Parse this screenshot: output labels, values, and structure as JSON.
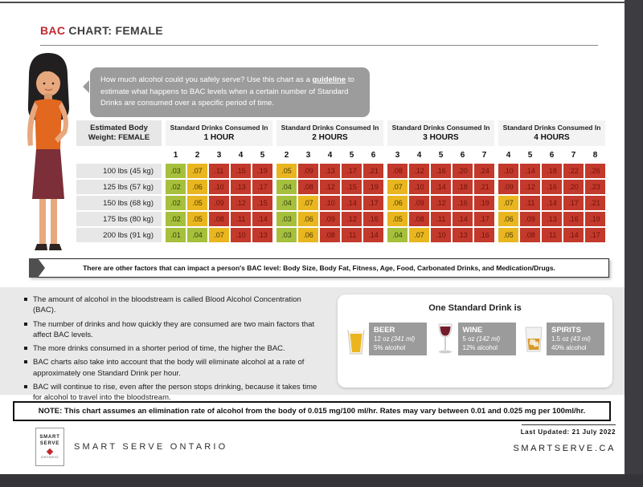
{
  "title": {
    "red": "BAC",
    "rest": " CHART: FEMALE"
  },
  "intro": {
    "pre": "How much alcohol could you safely serve? Use this chart as a ",
    "link": "guideline",
    "post": " to estimate what happens to BAC levels when a certain number of Standard Drinks are consumed over a specific period of time."
  },
  "chart_data": {
    "type": "table",
    "weight_header": [
      "Estimated Body",
      "Weight: FEMALE"
    ],
    "weights": [
      "100 lbs (45 kg)",
      "125 lbs (57 kg)",
      "150 lbs (68 kg)",
      "175 lbs (80 kg)",
      "200 lbs (91 kg)"
    ],
    "color_legend": {
      "green": "#a6c03c",
      "yellow": "#e9b61f",
      "red": "#c3392b"
    },
    "color_rule": {
      "green_max": 0.04,
      "yellow_max": 0.07
    },
    "groups": [
      {
        "header": "Standard Drinks Consumed In",
        "period": "1 HOUR",
        "drink_counts": [
          "1",
          "2",
          "3",
          "4",
          "5"
        ],
        "rows": [
          [
            ".03",
            ".07",
            ".11",
            ".15",
            ".19"
          ],
          [
            ".02",
            ".06",
            ".10",
            ".13",
            ".17"
          ],
          [
            ".02",
            ".05",
            ".09",
            ".12",
            ".15"
          ],
          [
            ".02",
            ".05",
            ".08",
            ".11",
            ".14"
          ],
          [
            ".01",
            ".04",
            ".07",
            ".10",
            ".13"
          ]
        ]
      },
      {
        "header": "Standard Drinks Consumed In",
        "period": "2 HOURS",
        "drink_counts": [
          "2",
          "3",
          "4",
          "5",
          "6"
        ],
        "rows": [
          [
            ".05",
            ".09",
            ".13",
            ".17",
            ".21"
          ],
          [
            ".04",
            ".08",
            ".12",
            ".15",
            ".19"
          ],
          [
            ".04",
            ".07",
            ".10",
            ".14",
            ".17"
          ],
          [
            ".03",
            ".06",
            ".09",
            ".12",
            ".16"
          ],
          [
            ".03",
            ".06",
            ".08",
            ".11",
            ".14"
          ]
        ]
      },
      {
        "header": "Standard Drinks Consumed In",
        "period": "3 HOURS",
        "drink_counts": [
          "3",
          "4",
          "5",
          "6",
          "7"
        ],
        "rows": [
          [
            ".08",
            ".12",
            ".16",
            ".20",
            ".24"
          ],
          [
            ".07",
            ".10",
            ".14",
            ".18",
            ".21"
          ],
          [
            ".06",
            ".09",
            ".12",
            ".16",
            ".19"
          ],
          [
            ".05",
            ".08",
            ".11",
            ".14",
            ".17"
          ],
          [
            ".04",
            ".07",
            ".10",
            ".13",
            ".16"
          ]
        ]
      },
      {
        "header": "Standard Drinks Consumed In",
        "period": "4 HOURS",
        "drink_counts": [
          "4",
          "5",
          "6",
          "7",
          "8"
        ],
        "rows": [
          [
            ".10",
            ".14",
            ".18",
            ".22",
            ".26"
          ],
          [
            ".09",
            ".12",
            ".16",
            ".20",
            ".23"
          ],
          [
            ".07",
            ".11",
            ".14",
            ".17",
            ".21"
          ],
          [
            ".06",
            ".09",
            ".13",
            ".16",
            ".19"
          ],
          [
            ".05",
            ".08",
            ".11",
            ".14",
            ".17"
          ]
        ]
      }
    ]
  },
  "factors_banner": "There are other factors that can impact a person's BAC level: Body Size, Body Fat, Fitness, Age, Food, Carbonated Drinks, and Medication/Drugs.",
  "bullets": [
    "The amount of alcohol in the bloodstream is called Blood Alcohol Concentration (BAC).",
    "The number of drinks and how quickly they are consumed are two main factors that affect BAC levels.",
    "The more drinks consumed in a shorter period of time, the higher the BAC.",
    "BAC charts also take into account that the body will eliminate alcohol at a rate of approximately one Standard Drink per hour.",
    "BAC will continue to rise, even after the person stops drinking, because it takes time for alcohol to travel into the bloodstream."
  ],
  "standard_drink": {
    "title": "One Standard Drink is",
    "drinks": [
      {
        "name": "BEER",
        "size": "12 oz ",
        "size_ml": "(341 ml)",
        "alcohol": "5% alcohol",
        "icon": "beer-glass-icon"
      },
      {
        "name": "WINE",
        "size": "5 oz ",
        "size_ml": "(142 ml)",
        "alcohol": "12% alcohol",
        "icon": "wine-glass-icon"
      },
      {
        "name": "SPIRITS",
        "size": "1.5 oz ",
        "size_ml": "(43 ml)",
        "alcohol": "40% alcohol",
        "icon": "spirits-glass-icon"
      }
    ]
  },
  "note": {
    "label": "NOTE:",
    "text": " This chart assumes an elimination rate of alcohol from the body of 0.015 mg/100 ml/hr. Rates may vary between 0.01 and 0.025 mg per 100ml/hr."
  },
  "footer": {
    "logo": {
      "line1": "SMART",
      "line2": "SERVE",
      "line3": "ONTARIO"
    },
    "brand": "SMART SERVE ONTARIO",
    "updated": "Last Updated: 21 July 2022",
    "site": "SMARTSERVE.CA"
  }
}
